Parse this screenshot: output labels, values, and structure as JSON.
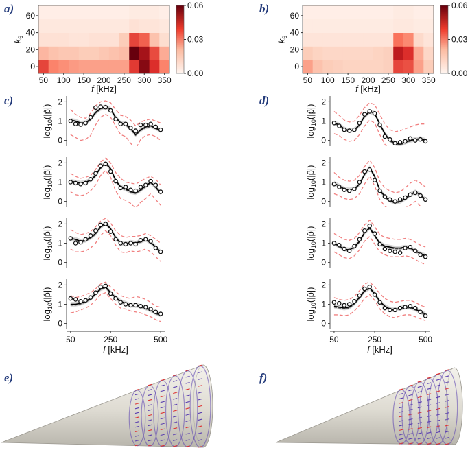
{
  "colors": {
    "heat_low": "#fff5f0",
    "heat_high": "#67000d",
    "simulated_line": "#000000",
    "bound_line": "#f08080",
    "band_fill": "#c8c8c8",
    "cone_fill": "#e6e4dc",
    "vector_color": "#5a3fb0",
    "label_color": "#233a7a"
  },
  "panel_labels": {
    "a": "a)",
    "b": "b)",
    "c": "c)",
    "d": "d)",
    "e": "e)",
    "f": "f)"
  },
  "chart_data": [
    {
      "id": "a",
      "type": "heatmap",
      "xlabel_italic": "f",
      "xlabel_unit": " [kHz]",
      "ylabel_italic": "k",
      "ylabel_sub": "θ",
      "x_ticks": [
        "50",
        "100",
        "150",
        "200",
        "250",
        "300",
        "350"
      ],
      "x_tick_values": [
        50,
        100,
        150,
        200,
        250,
        300,
        350
      ],
      "xlim": [
        37.5,
        362.5
      ],
      "x_bins": [
        50,
        75,
        100,
        125,
        150,
        175,
        200,
        225,
        250,
        275,
        300,
        325,
        350
      ],
      "y_ticks": [
        "0",
        "20",
        "40",
        "60"
      ],
      "y_tick_values": [
        0,
        20,
        40,
        60
      ],
      "y_bins": [
        0,
        16,
        32,
        48,
        64
      ],
      "colorbar_ticks": [
        "0.00",
        "0.03",
        "0.06"
      ],
      "colorbar_tick_values": [
        0.0,
        0.03,
        0.06
      ],
      "zlim": [
        0,
        0.06
      ],
      "values": [
        [
          0.036,
          0.025,
          0.023,
          0.021,
          0.02,
          0.02,
          0.02,
          0.02,
          0.02,
          0.038,
          0.055,
          0.04,
          0.025
        ],
        [
          0.016,
          0.014,
          0.013,
          0.013,
          0.012,
          0.012,
          0.013,
          0.014,
          0.015,
          0.06,
          0.05,
          0.035,
          0.018
        ],
        [
          0.006,
          0.006,
          0.006,
          0.005,
          0.005,
          0.006,
          0.006,
          0.006,
          0.012,
          0.036,
          0.031,
          0.014,
          0.007
        ],
        [
          0.004,
          0.004,
          0.004,
          0.004,
          0.004,
          0.004,
          0.004,
          0.004,
          0.004,
          0.006,
          0.005,
          0.005,
          0.004
        ],
        [
          0.002,
          0.002,
          0.002,
          0.002,
          0.002,
          0.002,
          0.002,
          0.002,
          0.002,
          0.003,
          0.003,
          0.003,
          0.002
        ]
      ]
    },
    {
      "id": "b",
      "type": "heatmap",
      "xlabel_italic": "f",
      "xlabel_unit": " [kHz]",
      "ylabel_italic": "k",
      "ylabel_sub": "θ",
      "x_ticks": [
        "50",
        "100",
        "150",
        "200",
        "250",
        "300",
        "350"
      ],
      "x_tick_values": [
        50,
        100,
        150,
        200,
        250,
        300,
        350
      ],
      "xlim": [
        37.5,
        362.5
      ],
      "x_bins": [
        50,
        75,
        100,
        125,
        150,
        175,
        200,
        225,
        250,
        275,
        300,
        325,
        350
      ],
      "y_ticks": [
        "0",
        "20",
        "40",
        "60"
      ],
      "y_tick_values": [
        0,
        20,
        40,
        60
      ],
      "y_bins": [
        0,
        16,
        32,
        48,
        64
      ],
      "colorbar_ticks": [
        "0.00",
        "0.03",
        "0.06"
      ],
      "colorbar_tick_values": [
        0.0,
        0.03,
        0.06
      ],
      "zlim": [
        0,
        0.06
      ],
      "values": [
        [
          0.02,
          0.014,
          0.012,
          0.011,
          0.01,
          0.01,
          0.01,
          0.01,
          0.011,
          0.036,
          0.034,
          0.02,
          0.012
        ],
        [
          0.012,
          0.01,
          0.009,
          0.009,
          0.009,
          0.009,
          0.009,
          0.01,
          0.011,
          0.046,
          0.04,
          0.018,
          0.009
        ],
        [
          0.005,
          0.005,
          0.005,
          0.005,
          0.005,
          0.005,
          0.005,
          0.005,
          0.005,
          0.028,
          0.024,
          0.008,
          0.005
        ],
        [
          0.003,
          0.003,
          0.003,
          0.003,
          0.003,
          0.003,
          0.003,
          0.003,
          0.003,
          0.004,
          0.004,
          0.003,
          0.003
        ],
        [
          0.002,
          0.002,
          0.002,
          0.002,
          0.002,
          0.002,
          0.002,
          0.002,
          0.002,
          0.003,
          0.003,
          0.002,
          0.002
        ]
      ]
    },
    {
      "id": "c",
      "type": "line",
      "ylabel_main": "log",
      "ylabel_sub": "10",
      "ylabel_arg": "(|p̂|)",
      "xlabel_italic": "f",
      "xlabel_unit": " [kHz]",
      "x_ticks": [
        "50",
        "250",
        "500"
      ],
      "x_tick_values": [
        50,
        250,
        500
      ],
      "xlim": [
        30,
        520
      ],
      "y_ticks": [
        "0",
        "1",
        "2"
      ],
      "y_tick_values": [
        0,
        1,
        2
      ],
      "ylim": [
        -0.3,
        2.3
      ],
      "x": [
        50,
        75,
        100,
        125,
        150,
        175,
        200,
        225,
        250,
        275,
        300,
        325,
        350,
        375,
        400,
        425,
        450,
        475,
        500
      ],
      "subplots": [
        {
          "mean": [
            1.05,
            1.0,
            0.9,
            0.92,
            1.1,
            1.45,
            1.65,
            1.75,
            1.62,
            1.2,
            0.9,
            0.85,
            0.6,
            0.3,
            0.55,
            0.7,
            0.75,
            0.65,
            0.5
          ],
          "upper": [
            1.6,
            1.35,
            1.2,
            1.15,
            1.4,
            1.8,
            2.0,
            2.05,
            1.95,
            1.6,
            1.3,
            1.25,
            1.05,
            0.75,
            0.95,
            1.05,
            1.1,
            1.0,
            0.9
          ],
          "lower": [
            0.3,
            0.15,
            0.0,
            0.05,
            0.25,
            0.8,
            1.2,
            1.35,
            1.2,
            0.75,
            0.3,
            0.2,
            -0.15,
            -0.45,
            0.05,
            0.25,
            0.3,
            0.2,
            0.0
          ],
          "measured": [
            1.0,
            0.85,
            0.82,
            0.9,
            1.2,
            1.7,
            1.75,
            1.72,
            1.55,
            1.1,
            0.85,
            0.85,
            0.65,
            0.5,
            0.8,
            0.8,
            0.85,
            0.7,
            0.55
          ]
        },
        {
          "mean": [
            1.05,
            1.0,
            0.95,
            1.0,
            1.1,
            1.35,
            1.75,
            2.0,
            1.7,
            1.1,
            0.75,
            0.65,
            0.5,
            0.45,
            0.6,
            0.8,
            1.0,
            0.75,
            0.45
          ],
          "upper": [
            1.45,
            1.3,
            1.2,
            1.25,
            1.35,
            1.65,
            2.05,
            2.25,
            2.0,
            1.5,
            1.2,
            1.0,
            0.95,
            0.9,
            1.05,
            1.2,
            1.3,
            1.15,
            0.85
          ],
          "lower": [
            0.5,
            0.35,
            0.3,
            0.35,
            0.55,
            0.85,
            1.35,
            1.6,
            1.25,
            0.55,
            0.15,
            0.05,
            -0.1,
            -0.35,
            -0.05,
            0.15,
            0.4,
            0.1,
            -0.2
          ],
          "measured": [
            1.0,
            0.95,
            0.9,
            0.95,
            1.15,
            1.45,
            1.85,
            1.95,
            1.55,
            1.05,
            0.7,
            0.75,
            0.6,
            0.55,
            0.75,
            0.85,
            1.05,
            0.85,
            0.5
          ]
        },
        {
          "mean": [
            1.25,
            1.2,
            1.1,
            1.15,
            1.3,
            1.5,
            1.85,
            2.05,
            1.75,
            1.3,
            1.0,
            0.95,
            1.05,
            1.0,
            1.1,
            1.2,
            1.05,
            0.8,
            0.55
          ],
          "upper": [
            1.7,
            1.55,
            1.45,
            1.5,
            1.6,
            1.85,
            2.15,
            2.3,
            2.05,
            1.65,
            1.4,
            1.3,
            1.35,
            1.35,
            1.4,
            1.5,
            1.4,
            1.2,
            1.0
          ],
          "lower": [
            0.7,
            0.55,
            0.55,
            0.6,
            0.75,
            1.0,
            1.4,
            1.65,
            1.4,
            0.9,
            0.55,
            0.5,
            0.6,
            0.55,
            0.6,
            0.7,
            0.55,
            0.3,
            0.05
          ],
          "measured": [
            1.25,
            1.0,
            1.05,
            1.2,
            1.4,
            1.65,
            1.95,
            2.0,
            1.6,
            1.2,
            1.0,
            0.95,
            1.0,
            0.95,
            1.15,
            1.2,
            1.1,
            0.75,
            0.55
          ]
        },
        {
          "mean": [
            1.0,
            1.0,
            1.05,
            1.15,
            1.3,
            1.55,
            1.8,
            1.9,
            1.6,
            1.35,
            1.15,
            1.05,
            0.95,
            0.95,
            0.9,
            0.8,
            0.7,
            0.55,
            0.45
          ],
          "upper": [
            1.45,
            1.35,
            1.4,
            1.5,
            1.6,
            1.8,
            2.05,
            2.15,
            1.9,
            1.65,
            1.45,
            1.35,
            1.3,
            1.4,
            1.35,
            1.25,
            1.1,
            0.9,
            0.85
          ],
          "lower": [
            0.55,
            0.6,
            0.7,
            0.8,
            0.95,
            1.2,
            1.5,
            1.6,
            1.3,
            1.0,
            0.8,
            0.75,
            0.65,
            0.6,
            0.55,
            0.45,
            0.35,
            0.2,
            0.1
          ],
          "measured": [
            1.3,
            1.25,
            1.15,
            1.2,
            1.35,
            1.6,
            1.9,
            1.95,
            1.55,
            1.3,
            1.1,
            1.0,
            0.95,
            0.95,
            0.9,
            0.85,
            0.75,
            0.6,
            0.5
          ]
        }
      ]
    },
    {
      "id": "d",
      "type": "line",
      "ylabel_main": "log",
      "ylabel_sub": "10",
      "ylabel_arg": "(|p̂|)",
      "xlabel_italic": "f",
      "xlabel_unit": " [kHz]",
      "x_ticks": [
        "50",
        "250",
        "500"
      ],
      "x_tick_values": [
        50,
        250,
        500
      ],
      "xlim": [
        30,
        520
      ],
      "y_ticks": [
        "0",
        "1",
        "2"
      ],
      "y_tick_values": [
        0,
        1,
        2
      ],
      "ylim": [
        -0.3,
        2.3
      ],
      "x": [
        50,
        75,
        100,
        125,
        150,
        175,
        200,
        225,
        250,
        275,
        300,
        325,
        350,
        375,
        400,
        425,
        450,
        475,
        500
      ],
      "subplots": [
        {
          "mean": [
            0.9,
            0.8,
            0.6,
            0.5,
            0.55,
            0.8,
            1.25,
            1.5,
            1.4,
            0.85,
            0.35,
            0.0,
            -0.15,
            -0.2,
            -0.1,
            0.0,
            0.05,
            0.1,
            0.0
          ],
          "upper": [
            1.5,
            1.3,
            1.05,
            0.95,
            1.0,
            1.3,
            1.7,
            1.95,
            1.85,
            1.35,
            0.85,
            0.55,
            0.45,
            0.5,
            0.6,
            0.7,
            0.8,
            0.85,
            0.85
          ],
          "lower": [
            0.35,
            0.25,
            0.05,
            -0.05,
            0.0,
            0.3,
            0.75,
            1.05,
            0.9,
            0.3,
            -0.2,
            -0.55,
            -0.7,
            -0.75,
            -0.65,
            -0.6,
            -0.55,
            -0.5,
            -0.6
          ],
          "measured": [
            0.9,
            0.75,
            0.55,
            0.5,
            0.55,
            0.9,
            1.35,
            1.5,
            1.4,
            0.8,
            0.2,
            0.05,
            -0.15,
            -0.1,
            -0.05,
            0.1,
            0.0,
            0.05,
            -0.05
          ]
        },
        {
          "mean": [
            0.95,
            0.8,
            0.65,
            0.6,
            0.65,
            0.9,
            1.4,
            1.75,
            1.3,
            0.6,
            0.25,
            0.05,
            -0.05,
            0.0,
            0.15,
            0.35,
            0.5,
            0.35,
            0.1
          ],
          "upper": [
            1.5,
            1.25,
            1.1,
            1.05,
            1.1,
            1.35,
            1.8,
            2.15,
            1.75,
            1.05,
            0.7,
            0.55,
            0.45,
            0.5,
            0.7,
            0.95,
            1.1,
            0.95,
            0.75
          ],
          "lower": [
            0.4,
            0.3,
            0.15,
            0.1,
            0.15,
            0.4,
            0.9,
            1.3,
            0.8,
            0.1,
            -0.25,
            -0.45,
            -0.55,
            -0.5,
            -0.35,
            -0.2,
            0.0,
            -0.25,
            -0.5
          ],
          "measured": [
            0.9,
            0.75,
            0.6,
            0.55,
            0.65,
            1.0,
            1.55,
            1.65,
            1.1,
            0.55,
            0.25,
            0.1,
            0.0,
            0.1,
            0.2,
            0.35,
            0.45,
            0.3,
            0.1
          ]
        },
        {
          "mean": [
            1.0,
            0.85,
            0.7,
            0.65,
            0.8,
            1.1,
            1.55,
            1.8,
            1.4,
            1.0,
            0.85,
            0.8,
            0.75,
            0.75,
            0.8,
            0.75,
            0.6,
            0.45,
            0.35
          ],
          "upper": [
            1.5,
            1.35,
            1.2,
            1.15,
            1.25,
            1.55,
            1.95,
            2.2,
            1.85,
            1.45,
            1.3,
            1.25,
            1.2,
            1.2,
            1.25,
            1.2,
            1.05,
            0.9,
            0.8
          ],
          "lower": [
            0.55,
            0.4,
            0.25,
            0.2,
            0.35,
            0.65,
            1.1,
            1.35,
            0.95,
            0.55,
            0.4,
            0.3,
            0.3,
            0.3,
            0.35,
            0.3,
            0.15,
            0.0,
            -0.1
          ],
          "measured": [
            1.0,
            0.9,
            0.7,
            0.6,
            0.85,
            1.2,
            1.65,
            1.9,
            1.5,
            0.95,
            0.7,
            0.6,
            0.55,
            0.5,
            0.75,
            0.8,
            0.6,
            0.4,
            0.3
          ]
        },
        {
          "mean": [
            0.9,
            0.85,
            0.8,
            0.85,
            1.05,
            1.35,
            1.7,
            1.85,
            1.55,
            1.15,
            0.9,
            0.75,
            0.7,
            0.8,
            0.85,
            0.85,
            0.75,
            0.6,
            0.5
          ],
          "upper": [
            1.35,
            1.25,
            1.2,
            1.25,
            1.4,
            1.7,
            2.05,
            2.15,
            1.9,
            1.55,
            1.3,
            1.15,
            1.1,
            1.15,
            1.2,
            1.2,
            1.1,
            0.95,
            0.85
          ],
          "lower": [
            0.45,
            0.45,
            0.4,
            0.45,
            0.65,
            0.95,
            1.3,
            1.5,
            1.2,
            0.75,
            0.5,
            0.35,
            0.3,
            0.4,
            0.45,
            0.45,
            0.35,
            0.25,
            0.15
          ],
          "measured": [
            1.1,
            1.05,
            0.95,
            1.0,
            1.15,
            1.45,
            1.8,
            1.9,
            1.5,
            1.1,
            0.8,
            0.7,
            0.7,
            0.8,
            0.85,
            0.9,
            0.8,
            0.6,
            0.4
          ]
        }
      ]
    }
  ]
}
